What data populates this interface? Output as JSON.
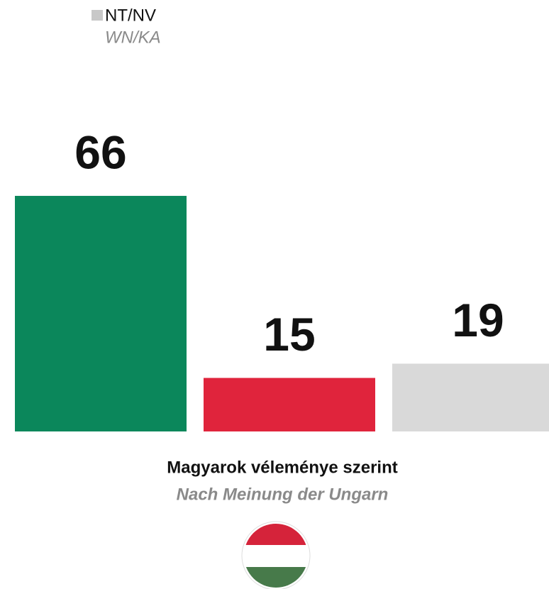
{
  "chart_data": {
    "type": "bar",
    "legend": [
      {
        "label": "NT/NV",
        "sublabel": "WN/KA",
        "color": "#c8c8c8"
      }
    ],
    "categories": [
      null,
      null,
      null
    ],
    "values": [
      66,
      15,
      19
    ],
    "colors": [
      "#0b875b",
      "#e0243c",
      "#d9d9d9"
    ],
    "caption": "Magyarok véleménye szerint",
    "subcaption": "Nach Meinung der Ungarn"
  }
}
